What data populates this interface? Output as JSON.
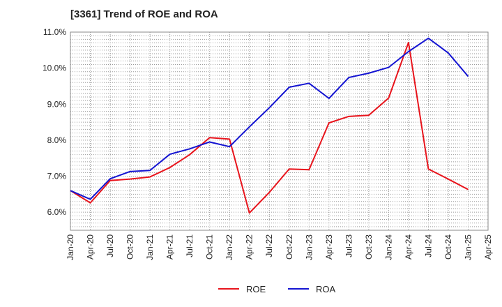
{
  "chart_data": {
    "type": "line",
    "title": "[3361]  Trend of ROE and ROA",
    "xlabel": "",
    "ylabel": "",
    "y_tick_labels": [
      "6.0%",
      "7.0%",
      "8.0%",
      "9.0%",
      "10.0%",
      "11.0%"
    ],
    "y_ticks": [
      6.0,
      7.0,
      8.0,
      9.0,
      10.0,
      11.0
    ],
    "ylim": [
      5.5,
      11.0
    ],
    "x_tick_labels": [
      "Jan-20",
      "Apr-20",
      "Jul-20",
      "Oct-20",
      "Jan-21",
      "Apr-21",
      "Jul-21",
      "Oct-21",
      "Jan-22",
      "Apr-22",
      "Jul-22",
      "Oct-22",
      "Jan-23",
      "Apr-23",
      "Jul-23",
      "Oct-23",
      "Jan-24",
      "Apr-24",
      "Jul-24",
      "Oct-24",
      "Jan-25",
      "Apr-25"
    ],
    "categories": [
      "Jan-20",
      "Apr-20",
      "Jul-20",
      "Oct-20",
      "Jan-21",
      "Apr-21",
      "Jul-21",
      "Oct-21",
      "Jan-22",
      "Apr-22",
      "Jul-22",
      "Oct-22",
      "Jan-23",
      "Apr-23",
      "Jul-23",
      "Oct-23",
      "Jan-24",
      "Apr-24",
      "Jul-24",
      "Oct-24",
      "Jan-25"
    ],
    "grid": true,
    "legend_position": "bottom",
    "series": [
      {
        "name": "ROE",
        "color": "#e8141c",
        "values": [
          6.6,
          6.26,
          6.88,
          6.92,
          6.98,
          7.24,
          7.6,
          8.07,
          8.03,
          5.98,
          6.55,
          7.2,
          7.18,
          8.48,
          8.66,
          8.69,
          9.17,
          10.71,
          7.2,
          6.92,
          6.63
        ]
      },
      {
        "name": "ROA",
        "color": "#1414d2",
        "values": [
          6.6,
          6.36,
          6.93,
          7.13,
          7.16,
          7.61,
          7.76,
          7.95,
          7.82,
          8.37,
          8.9,
          9.47,
          9.58,
          9.16,
          9.74,
          9.86,
          10.02,
          10.46,
          10.83,
          10.42,
          9.77
        ]
      }
    ]
  }
}
